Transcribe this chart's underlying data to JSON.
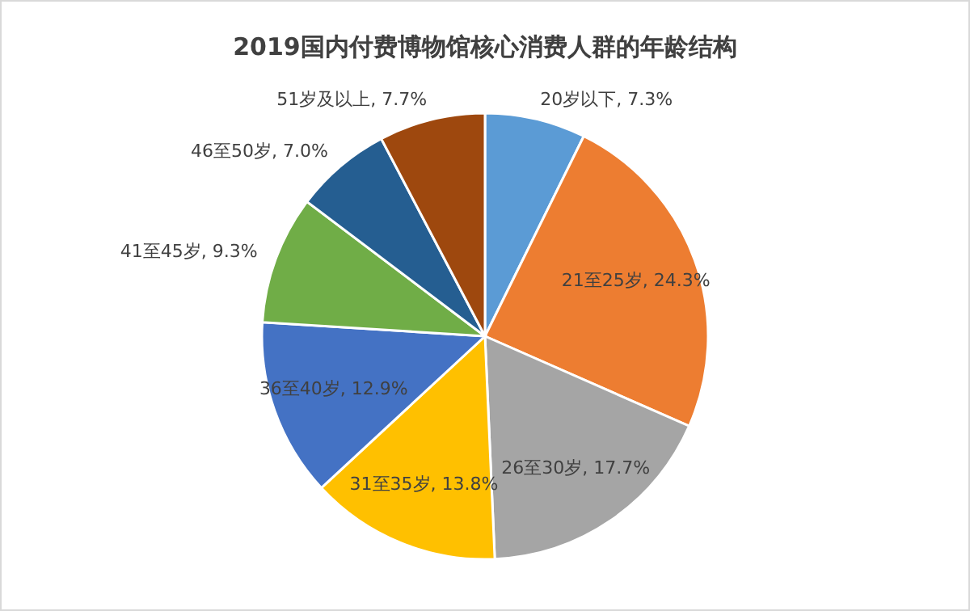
{
  "chart_data": {
    "type": "pie",
    "title": "2019国内付费博物馆核心消费人群的年龄结构",
    "categories": [
      "20岁以下",
      "21至25岁",
      "26至30岁",
      "31至35岁",
      "36至40岁",
      "41至45岁",
      "46至50岁",
      "51岁及以上"
    ],
    "values": [
      7.3,
      24.3,
      17.7,
      13.8,
      12.9,
      9.3,
      7.0,
      7.7
    ],
    "value_labels": [
      "7.3%",
      "24.3%",
      "17.7%",
      "13.8%",
      "12.9%",
      "9.3%",
      "7.0%",
      "7.7%"
    ],
    "colors": [
      "#5b9bd5",
      "#ed7d31",
      "#a5a5a5",
      "#ffc000",
      "#4472c4",
      "#70ad47",
      "#255e91",
      "#9e480e"
    ]
  }
}
